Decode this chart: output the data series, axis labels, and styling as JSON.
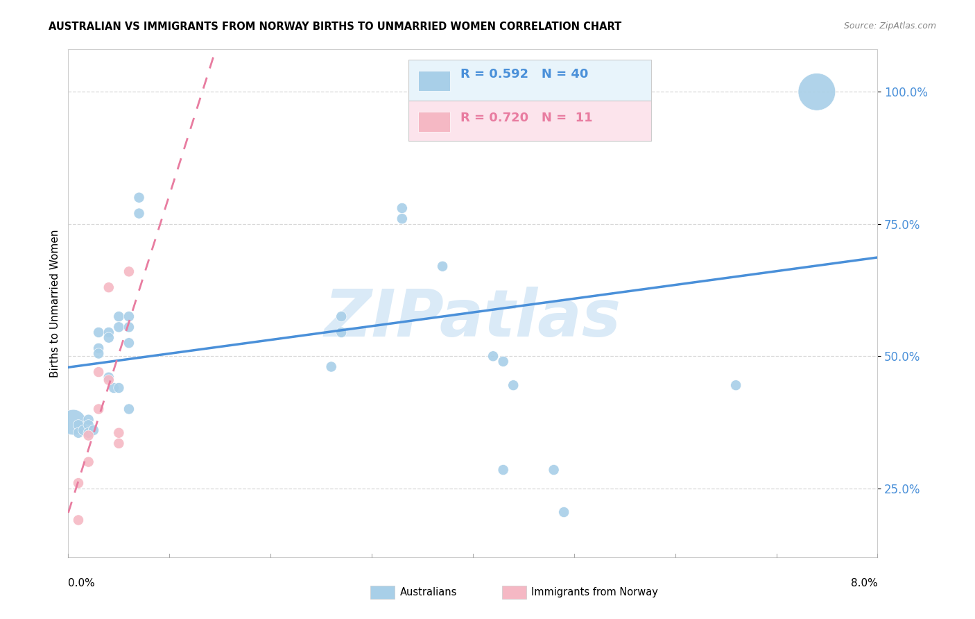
{
  "title": "AUSTRALIAN VS IMMIGRANTS FROM NORWAY BIRTHS TO UNMARRIED WOMEN CORRELATION CHART",
  "source": "Source: ZipAtlas.com",
  "ylabel": "Births to Unmarried Women",
  "ytick_vals": [
    0.25,
    0.5,
    0.75,
    1.0
  ],
  "ytick_labels": [
    "25.0%",
    "50.0%",
    "75.0%",
    "100.0%"
  ],
  "xlim": [
    0.0,
    0.08
  ],
  "ylim": [
    0.12,
    1.08
  ],
  "R_blue": 0.592,
  "N_blue": 40,
  "R_pink": 0.72,
  "N_pink": 11,
  "blue_dot_color": "#a8cfe8",
  "pink_dot_color": "#f5b8c4",
  "blue_line_color": "#4a90d9",
  "pink_line_color": "#e87ca0",
  "legend_box_color": "#e8f4fb",
  "legend_pink_box": "#fce4ec",
  "watermark_color": "#daeaf7",
  "grid_color": "#d8d8d8",
  "blue_x": [
    0.0005,
    0.001,
    0.001,
    0.0015,
    0.002,
    0.002,
    0.002,
    0.0025,
    0.003,
    0.003,
    0.003,
    0.004,
    0.004,
    0.004,
    0.0045,
    0.005,
    0.005,
    0.005,
    0.006,
    0.006,
    0.006,
    0.006,
    0.007,
    0.007,
    0.026,
    0.027,
    0.027,
    0.033,
    0.033,
    0.037,
    0.038,
    0.038,
    0.042,
    0.043,
    0.043,
    0.044,
    0.048,
    0.049,
    0.066,
    0.074
  ],
  "blue_y": [
    0.375,
    0.37,
    0.355,
    0.36,
    0.38,
    0.37,
    0.355,
    0.36,
    0.545,
    0.515,
    0.505,
    0.545,
    0.535,
    0.46,
    0.44,
    0.575,
    0.555,
    0.44,
    0.575,
    0.555,
    0.525,
    0.4,
    0.8,
    0.77,
    0.48,
    0.575,
    0.545,
    0.78,
    0.76,
    0.67,
    1.0,
    1.0,
    0.5,
    0.49,
    0.285,
    0.445,
    0.285,
    0.205,
    0.445,
    1.0
  ],
  "blue_sizes": [
    700,
    120,
    120,
    120,
    120,
    120,
    120,
    120,
    120,
    120,
    120,
    120,
    120,
    120,
    120,
    120,
    120,
    120,
    120,
    120,
    120,
    120,
    120,
    120,
    120,
    120,
    120,
    120,
    120,
    120,
    120,
    120,
    120,
    120,
    120,
    120,
    120,
    120,
    120,
    1500
  ],
  "pink_x": [
    0.001,
    0.001,
    0.002,
    0.002,
    0.003,
    0.003,
    0.004,
    0.004,
    0.005,
    0.005,
    0.006
  ],
  "pink_y": [
    0.19,
    0.26,
    0.3,
    0.35,
    0.4,
    0.47,
    0.455,
    0.63,
    0.355,
    0.335,
    0.66
  ],
  "pink_sizes": [
    120,
    120,
    120,
    120,
    120,
    120,
    120,
    120,
    120,
    120,
    120
  ],
  "blue_line_x": [
    0.0,
    0.08
  ],
  "pink_line_x": [
    0.0,
    0.034
  ]
}
